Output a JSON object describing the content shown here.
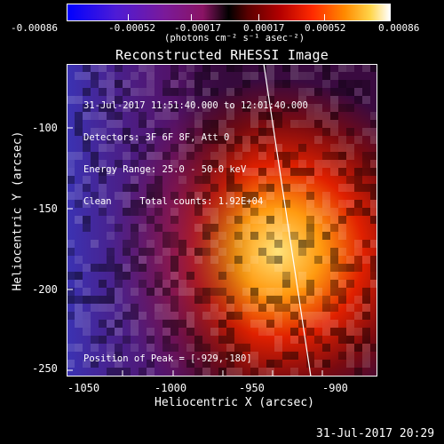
{
  "colorbar": {
    "ticks": [
      "-0.00086",
      "-0.00052",
      "-0.00017",
      "0.00017",
      "0.00052",
      "0.00086"
    ],
    "units": "(photons cm⁻² s⁻¹ asec⁻²)"
  },
  "title": "Reconstructed RHESSI Image",
  "info": {
    "time_range": "31-Jul-2017 11:51:40.000 to 12:01:40.000",
    "detectors": "Detectors: 3F 6F 8F, Att 0",
    "energy": "Energy Range: 25.0 - 50.0 keV",
    "clean": "Clean     Total counts: 1.92E+04"
  },
  "peak": "Position of Peak = [-929,-180]",
  "x_axis": {
    "label": "Heliocentric X (arcsec)",
    "ticks": [
      "-1050",
      "-1000",
      "-950",
      "-900"
    ]
  },
  "y_axis": {
    "label": "Heliocentric Y (arcsec)",
    "ticks": [
      "-100",
      "-150",
      "-200",
      "-250"
    ]
  },
  "timestamp": "31-Jul-2017 20:29",
  "colors": {
    "background": "#000000",
    "foreground": "#ffffff"
  }
}
